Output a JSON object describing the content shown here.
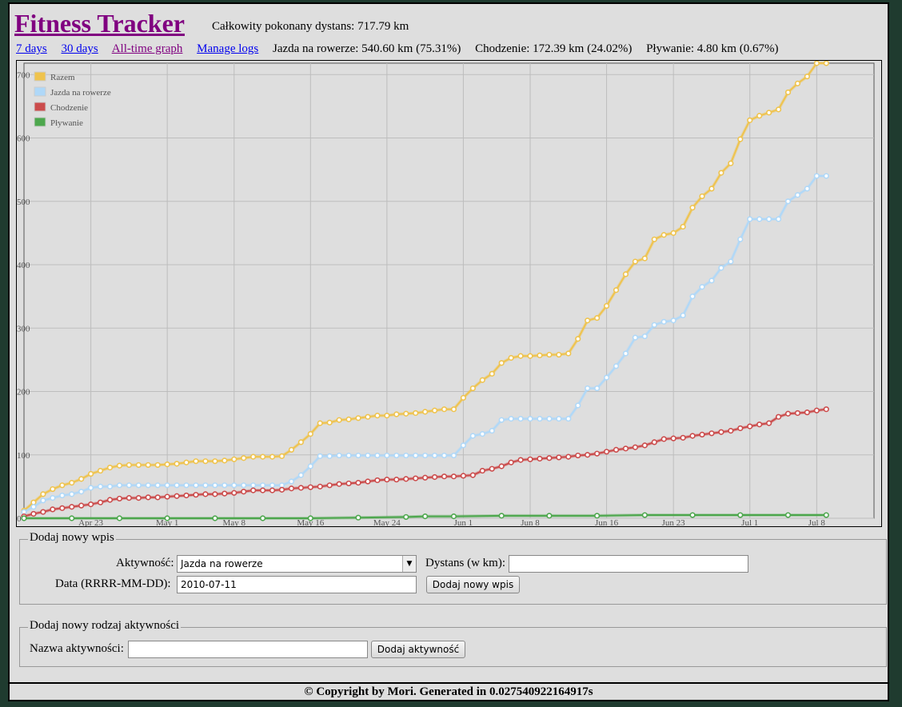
{
  "header": {
    "title": "Fitness Tracker",
    "total": "Całkowity pokonany dystans: 717.79 km"
  },
  "nav": {
    "seven_days": "7 days",
    "thirty_days": "30 days",
    "all_time": "All-time graph",
    "manage": "Manage logs"
  },
  "stats": {
    "cycling": "Jazda na rowerze: 540.60 km (75.31%)",
    "walking": "Chodzenie: 172.39 km (24.02%)",
    "swimming": "Pływanie: 4.80 km (0.67%)"
  },
  "chart_data": {
    "type": "line",
    "x_tick_labels": [
      "Apr 23",
      "May 1",
      "May 8",
      "May 16",
      "May 24",
      "Jun 1",
      "Jun 8",
      "Jun 16",
      "Jun 23",
      "Jul 1",
      "Jul 8"
    ],
    "x_tick_days": [
      7,
      15,
      22,
      30,
      38,
      46,
      53,
      61,
      68,
      76,
      83
    ],
    "x_range_days": [
      0,
      89
    ],
    "ylim": [
      0,
      718
    ],
    "y_ticks": [
      0,
      100,
      200,
      300,
      400,
      500,
      600,
      700
    ],
    "grid": true,
    "legend_position": "top-left",
    "series": [
      {
        "name": "Razem",
        "color": "#efc34d",
        "points": [
          [
            0,
            12
          ],
          [
            1,
            25
          ],
          [
            2,
            38
          ],
          [
            3,
            46
          ],
          [
            4,
            52
          ],
          [
            5,
            56
          ],
          [
            6,
            62
          ],
          [
            7,
            70
          ],
          [
            8,
            75
          ],
          [
            9,
            80
          ],
          [
            10,
            83
          ],
          [
            11,
            84
          ],
          [
            12,
            84
          ],
          [
            13,
            84
          ],
          [
            14,
            84
          ],
          [
            15,
            85
          ],
          [
            16,
            86
          ],
          [
            17,
            88
          ],
          [
            18,
            90
          ],
          [
            19,
            90
          ],
          [
            20,
            90
          ],
          [
            21,
            91
          ],
          [
            22,
            93
          ],
          [
            23,
            95
          ],
          [
            24,
            97
          ],
          [
            25,
            97
          ],
          [
            26,
            97
          ],
          [
            27,
            98
          ],
          [
            28,
            108
          ],
          [
            29,
            120
          ],
          [
            30,
            133
          ],
          [
            31,
            150
          ],
          [
            32,
            151
          ],
          [
            33,
            155
          ],
          [
            34,
            156
          ],
          [
            35,
            158
          ],
          [
            36,
            160
          ],
          [
            37,
            162
          ],
          [
            38,
            162
          ],
          [
            39,
            164
          ],
          [
            40,
            165
          ],
          [
            41,
            166
          ],
          [
            42,
            168
          ],
          [
            43,
            170
          ],
          [
            44,
            172
          ],
          [
            45,
            172
          ],
          [
            46,
            190
          ],
          [
            47,
            205
          ],
          [
            48,
            218
          ],
          [
            49,
            228
          ],
          [
            50,
            245
          ],
          [
            51,
            253
          ],
          [
            52,
            256
          ],
          [
            53,
            256
          ],
          [
            54,
            257
          ],
          [
            55,
            258
          ],
          [
            56,
            258
          ],
          [
            57,
            260
          ],
          [
            58,
            283
          ],
          [
            59,
            312
          ],
          [
            60,
            316
          ],
          [
            61,
            335
          ],
          [
            62,
            360
          ],
          [
            63,
            385
          ],
          [
            64,
            405
          ],
          [
            65,
            410
          ],
          [
            66,
            440
          ],
          [
            67,
            447
          ],
          [
            68,
            450
          ],
          [
            69,
            460
          ],
          [
            70,
            490
          ],
          [
            71,
            508
          ],
          [
            72,
            520
          ],
          [
            73,
            545
          ],
          [
            74,
            560
          ],
          [
            75,
            598
          ],
          [
            76,
            628
          ],
          [
            77,
            635
          ],
          [
            78,
            640
          ],
          [
            79,
            645
          ],
          [
            80,
            672
          ],
          [
            81,
            686
          ],
          [
            82,
            697
          ],
          [
            83,
            718
          ],
          [
            84,
            718
          ]
        ]
      },
      {
        "name": "Jazda na rowerze",
        "color": "#afd8f8",
        "points": [
          [
            0,
            10
          ],
          [
            1,
            18
          ],
          [
            2,
            28
          ],
          [
            3,
            32
          ],
          [
            4,
            36
          ],
          [
            5,
            38
          ],
          [
            6,
            42
          ],
          [
            7,
            48
          ],
          [
            8,
            50
          ],
          [
            9,
            50
          ],
          [
            10,
            52
          ],
          [
            11,
            52
          ],
          [
            12,
            52
          ],
          [
            13,
            52
          ],
          [
            14,
            52
          ],
          [
            15,
            52
          ],
          [
            16,
            52
          ],
          [
            17,
            52
          ],
          [
            18,
            52
          ],
          [
            19,
            52
          ],
          [
            20,
            52
          ],
          [
            21,
            52
          ],
          [
            22,
            52
          ],
          [
            23,
            52
          ],
          [
            24,
            52
          ],
          [
            25,
            52
          ],
          [
            26,
            52
          ],
          [
            27,
            52
          ],
          [
            28,
            58
          ],
          [
            29,
            68
          ],
          [
            30,
            82
          ],
          [
            31,
            98
          ],
          [
            32,
            98
          ],
          [
            33,
            99
          ],
          [
            34,
            99
          ],
          [
            35,
            99
          ],
          [
            36,
            99
          ],
          [
            37,
            99
          ],
          [
            38,
            99
          ],
          [
            39,
            99
          ],
          [
            40,
            99
          ],
          [
            41,
            99
          ],
          [
            42,
            99
          ],
          [
            43,
            99
          ],
          [
            44,
            99
          ],
          [
            45,
            99
          ],
          [
            46,
            115
          ],
          [
            47,
            130
          ],
          [
            48,
            133
          ],
          [
            49,
            138
          ],
          [
            50,
            155
          ],
          [
            51,
            157
          ],
          [
            52,
            157
          ],
          [
            53,
            157
          ],
          [
            54,
            157
          ],
          [
            55,
            157
          ],
          [
            56,
            157
          ],
          [
            57,
            157
          ],
          [
            58,
            178
          ],
          [
            59,
            205
          ],
          [
            60,
            205
          ],
          [
            61,
            222
          ],
          [
            62,
            240
          ],
          [
            63,
            260
          ],
          [
            64,
            285
          ],
          [
            65,
            287
          ],
          [
            66,
            305
          ],
          [
            67,
            310
          ],
          [
            68,
            312
          ],
          [
            69,
            320
          ],
          [
            70,
            350
          ],
          [
            71,
            365
          ],
          [
            72,
            375
          ],
          [
            73,
            395
          ],
          [
            74,
            405
          ],
          [
            75,
            440
          ],
          [
            76,
            472
          ],
          [
            77,
            472
          ],
          [
            78,
            472
          ],
          [
            79,
            472
          ],
          [
            80,
            500
          ],
          [
            81,
            510
          ],
          [
            82,
            520
          ],
          [
            83,
            540
          ],
          [
            84,
            540
          ]
        ]
      },
      {
        "name": "Chodzenie",
        "color": "#cb4b4b",
        "points": [
          [
            0,
            3
          ],
          [
            1,
            7
          ],
          [
            2,
            10
          ],
          [
            3,
            14
          ],
          [
            4,
            16
          ],
          [
            5,
            18
          ],
          [
            6,
            20
          ],
          [
            7,
            22
          ],
          [
            8,
            25
          ],
          [
            9,
            29
          ],
          [
            10,
            31
          ],
          [
            11,
            32
          ],
          [
            12,
            32
          ],
          [
            13,
            33
          ],
          [
            14,
            33
          ],
          [
            15,
            34
          ],
          [
            16,
            35
          ],
          [
            17,
            36
          ],
          [
            18,
            37
          ],
          [
            19,
            38
          ],
          [
            20,
            38
          ],
          [
            21,
            39
          ],
          [
            22,
            40
          ],
          [
            23,
            42
          ],
          [
            24,
            44
          ],
          [
            25,
            44
          ],
          [
            26,
            44
          ],
          [
            27,
            45
          ],
          [
            28,
            47
          ],
          [
            29,
            48
          ],
          [
            30,
            49
          ],
          [
            31,
            50
          ],
          [
            32,
            52
          ],
          [
            33,
            54
          ],
          [
            34,
            55
          ],
          [
            35,
            56
          ],
          [
            36,
            58
          ],
          [
            37,
            60
          ],
          [
            38,
            61
          ],
          [
            39,
            61
          ],
          [
            40,
            62
          ],
          [
            41,
            63
          ],
          [
            42,
            64
          ],
          [
            43,
            65
          ],
          [
            44,
            66
          ],
          [
            45,
            66
          ],
          [
            46,
            67
          ],
          [
            47,
            68
          ],
          [
            48,
            75
          ],
          [
            49,
            78
          ],
          [
            50,
            82
          ],
          [
            51,
            88
          ],
          [
            52,
            92
          ],
          [
            53,
            93
          ],
          [
            54,
            94
          ],
          [
            55,
            95
          ],
          [
            56,
            96
          ],
          [
            57,
            97
          ],
          [
            58,
            99
          ],
          [
            59,
            100
          ],
          [
            60,
            102
          ],
          [
            61,
            105
          ],
          [
            62,
            108
          ],
          [
            63,
            110
          ],
          [
            64,
            112
          ],
          [
            65,
            115
          ],
          [
            66,
            120
          ],
          [
            67,
            125
          ],
          [
            68,
            126
          ],
          [
            69,
            127
          ],
          [
            70,
            130
          ],
          [
            71,
            132
          ],
          [
            72,
            134
          ],
          [
            73,
            136
          ],
          [
            74,
            138
          ],
          [
            75,
            142
          ],
          [
            76,
            145
          ],
          [
            77,
            148
          ],
          [
            78,
            150
          ],
          [
            79,
            160
          ],
          [
            80,
            165
          ],
          [
            81,
            166
          ],
          [
            82,
            167
          ],
          [
            83,
            170
          ],
          [
            84,
            172
          ]
        ]
      },
      {
        "name": "Pływanie",
        "color": "#4da74d",
        "points": [
          [
            0,
            0
          ],
          [
            5,
            0
          ],
          [
            10,
            0
          ],
          [
            15,
            0
          ],
          [
            20,
            0
          ],
          [
            25,
            0
          ],
          [
            30,
            0
          ],
          [
            35,
            1
          ],
          [
            40,
            2
          ],
          [
            42,
            3
          ],
          [
            45,
            3
          ],
          [
            50,
            4
          ],
          [
            55,
            4
          ],
          [
            60,
            4
          ],
          [
            65,
            5
          ],
          [
            70,
            5
          ],
          [
            75,
            5
          ],
          [
            80,
            5
          ],
          [
            84,
            5
          ]
        ]
      }
    ]
  },
  "add_entry": {
    "legend": "Dodaj nowy wpis",
    "activity_label": "Aktywność:",
    "activity_value": "Jazda na rowerze",
    "distance_label": "Dystans (w km):",
    "distance_value": "",
    "date_label": "Data (RRRR-MM-DD):",
    "date_value": "2010-07-11",
    "submit": "Dodaj nowy wpis"
  },
  "add_activity": {
    "legend": "Dodaj nowy rodzaj aktywności",
    "name_label": "Nazwa aktywności:",
    "name_value": "",
    "submit": "Dodaj aktywność"
  },
  "footer": {
    "text": "© Copyright by Mori. Generated in 0.027540922164917s"
  }
}
